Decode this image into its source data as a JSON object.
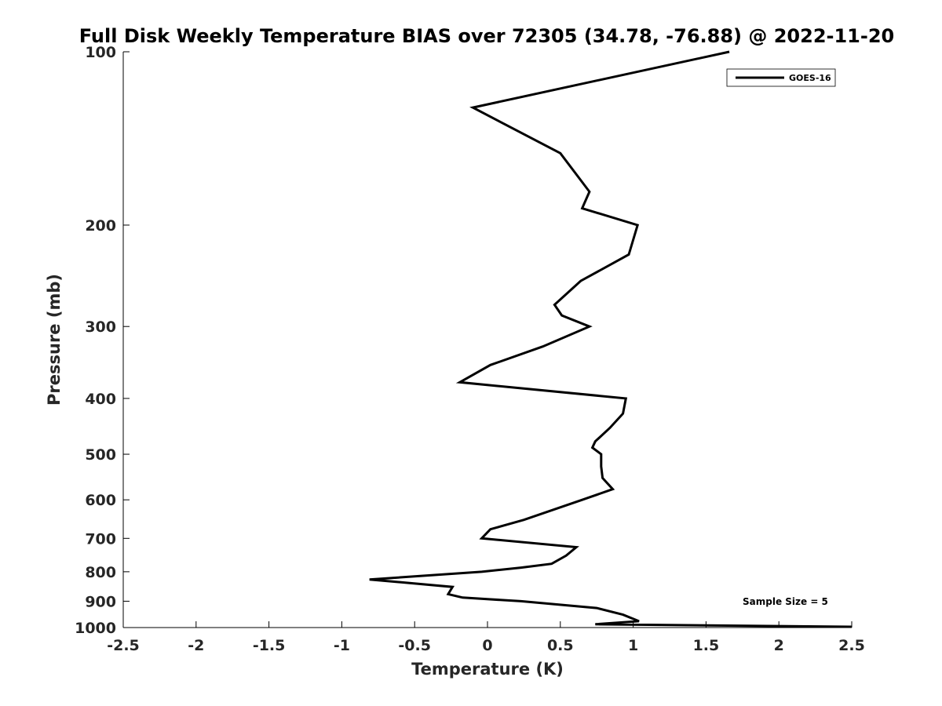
{
  "chart_data": {
    "type": "line",
    "title": "Full Disk Weekly Temperature BIAS over 72305 (34.78, -76.88) @ 2022-11-20",
    "xlabel": "Temperature (K)",
    "ylabel": "Pressure (mb)",
    "xlim": [
      -2.5,
      2.5
    ],
    "ylim": [
      100,
      1000
    ],
    "y_scale": "log",
    "y_inverted": true,
    "x_ticks": [
      "-2.5",
      "-2",
      "-1.5",
      "-1",
      "-0.5",
      "0",
      "0.5",
      "1",
      "1.5",
      "2",
      "2.5"
    ],
    "y_ticks": [
      "100",
      "200",
      "300",
      "400",
      "500",
      "600",
      "700",
      "800",
      "900",
      "1000"
    ],
    "legend": {
      "position": "top-right",
      "entries": [
        "GOES-16"
      ]
    },
    "annotation": "Sample Size = 5",
    "line_color": "#000000",
    "series": [
      {
        "name": "GOES-16",
        "points": [
          [
            1.66,
            100
          ],
          [
            -0.1,
            125
          ],
          [
            0.5,
            150
          ],
          [
            0.7,
            175
          ],
          [
            0.65,
            187
          ],
          [
            1.03,
            200
          ],
          [
            0.97,
            225
          ],
          [
            0.64,
            250
          ],
          [
            0.46,
            275
          ],
          [
            0.51,
            287
          ],
          [
            0.7,
            300
          ],
          [
            0.38,
            325
          ],
          [
            0.02,
            350
          ],
          [
            -0.19,
            375
          ],
          [
            0.95,
            400
          ],
          [
            0.93,
            425
          ],
          [
            0.84,
            450
          ],
          [
            0.74,
            475
          ],
          [
            0.72,
            487
          ],
          [
            0.78,
            500
          ],
          [
            0.78,
            525
          ],
          [
            0.79,
            550
          ],
          [
            0.86,
            575
          ],
          [
            0.65,
            600
          ],
          [
            0.25,
            650
          ],
          [
            0.02,
            675
          ],
          [
            -0.04,
            700
          ],
          [
            0.61,
            725
          ],
          [
            0.54,
            750
          ],
          [
            0.44,
            775
          ],
          [
            0.23,
            787
          ],
          [
            -0.04,
            800
          ],
          [
            -0.81,
            825
          ],
          [
            -0.24,
            850
          ],
          [
            -0.27,
            875
          ],
          [
            -0.17,
            887
          ],
          [
            0.23,
            900
          ],
          [
            0.75,
            925
          ],
          [
            0.93,
            950
          ],
          [
            1.04,
            975
          ],
          [
            0.74,
            987
          ],
          [
            2.5,
            997
          ]
        ]
      }
    ]
  }
}
